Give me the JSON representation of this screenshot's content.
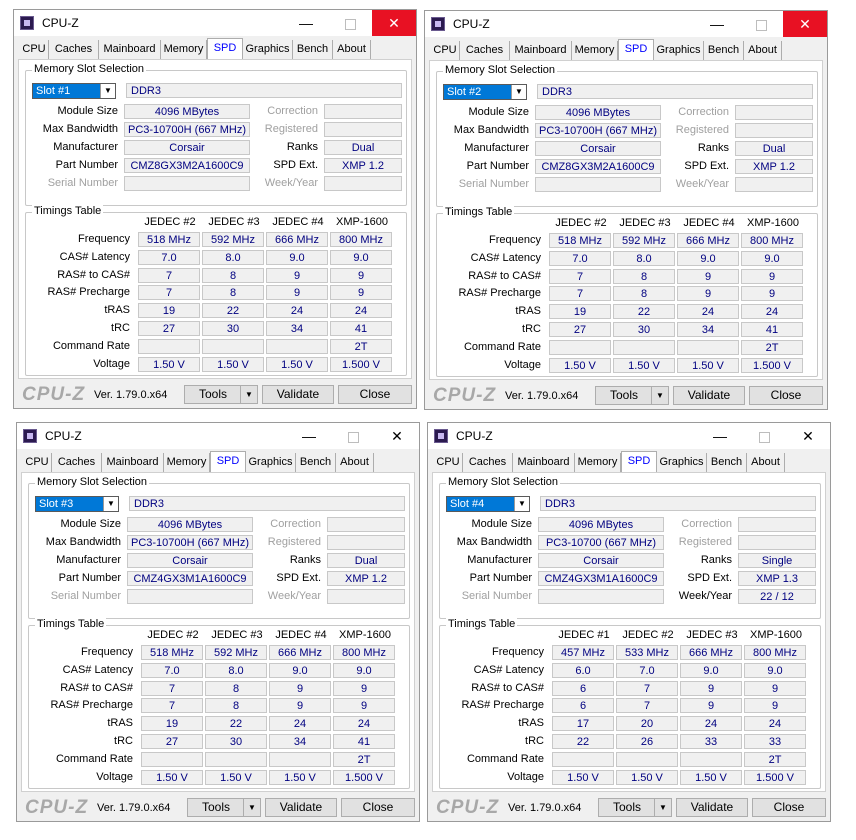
{
  "tabs": [
    "CPU",
    "Caches",
    "Mainboard",
    "Memory",
    "SPD",
    "Graphics",
    "Bench",
    "About"
  ],
  "labels": {
    "slot_group": "Memory Slot Selection",
    "timings_group": "Timings Table",
    "module_size": "Module Size",
    "max_bandwidth": "Max Bandwidth",
    "manufacturer": "Manufacturer",
    "part_number": "Part Number",
    "serial_number": "Serial Number",
    "correction": "Correction",
    "registered": "Registered",
    "ranks": "Ranks",
    "spd_ext": "SPD Ext.",
    "week_year": "Week/Year",
    "row_labels": [
      "Frequency",
      "CAS# Latency",
      "RAS# to CAS#",
      "RAS# Precharge",
      "tRAS",
      "tRC",
      "Command Rate",
      "Voltage"
    ]
  },
  "footer": {
    "brand": "CPU-Z",
    "version": "Ver. 1.79.0.x64",
    "tools": "Tools",
    "validate": "Validate",
    "close": "Close"
  },
  "windows": [
    {
      "title": "CPU-Z",
      "active_tab": "SPD",
      "slot": "Slot #1",
      "mem_type": "DDR3",
      "module_size": "4096 MBytes",
      "max_bandwidth": "PC3-10700H (667 MHz)",
      "manufacturer": "Corsair",
      "part_number": "CMZ8GX3M2A1600C9",
      "serial_number": "",
      "ranks": "Dual",
      "spd_ext": "XMP 1.2",
      "week_year": "",
      "columns": [
        "JEDEC #2",
        "JEDEC #3",
        "JEDEC #4",
        "XMP-1600"
      ],
      "rows": [
        [
          "518 MHz",
          "592 MHz",
          "666 MHz",
          "800 MHz"
        ],
        [
          "7.0",
          "8.0",
          "9.0",
          "9.0"
        ],
        [
          "7",
          "8",
          "9",
          "9"
        ],
        [
          "7",
          "8",
          "9",
          "9"
        ],
        [
          "19",
          "22",
          "24",
          "24"
        ],
        [
          "27",
          "30",
          "34",
          "41"
        ],
        [
          "",
          "",
          "",
          "2T"
        ],
        [
          "1.50 V",
          "1.50 V",
          "1.50 V",
          "1.500 V"
        ]
      ]
    },
    {
      "title": "CPU-Z",
      "active_tab": "SPD",
      "slot": "Slot #2",
      "mem_type": "DDR3",
      "module_size": "4096 MBytes",
      "max_bandwidth": "PC3-10700H (667 MHz)",
      "manufacturer": "Corsair",
      "part_number": "CMZ8GX3M2A1600C9",
      "serial_number": "",
      "ranks": "Dual",
      "spd_ext": "XMP 1.2",
      "week_year": "",
      "columns": [
        "JEDEC #2",
        "JEDEC #3",
        "JEDEC #4",
        "XMP-1600"
      ],
      "rows": [
        [
          "518 MHz",
          "592 MHz",
          "666 MHz",
          "800 MHz"
        ],
        [
          "7.0",
          "8.0",
          "9.0",
          "9.0"
        ],
        [
          "7",
          "8",
          "9",
          "9"
        ],
        [
          "7",
          "8",
          "9",
          "9"
        ],
        [
          "19",
          "22",
          "24",
          "24"
        ],
        [
          "27",
          "30",
          "34",
          "41"
        ],
        [
          "",
          "",
          "",
          "2T"
        ],
        [
          "1.50 V",
          "1.50 V",
          "1.50 V",
          "1.500 V"
        ]
      ]
    },
    {
      "title": "CPU-Z",
      "active_tab": "SPD",
      "slot": "Slot #3",
      "mem_type": "DDR3",
      "module_size": "4096 MBytes",
      "max_bandwidth": "PC3-10700H (667 MHz)",
      "manufacturer": "Corsair",
      "part_number": "CMZ4GX3M1A1600C9",
      "serial_number": "",
      "ranks": "Dual",
      "spd_ext": "XMP 1.2",
      "week_year": "",
      "columns": [
        "JEDEC #2",
        "JEDEC #3",
        "JEDEC #4",
        "XMP-1600"
      ],
      "rows": [
        [
          "518 MHz",
          "592 MHz",
          "666 MHz",
          "800 MHz"
        ],
        [
          "7.0",
          "8.0",
          "9.0",
          "9.0"
        ],
        [
          "7",
          "8",
          "9",
          "9"
        ],
        [
          "7",
          "8",
          "9",
          "9"
        ],
        [
          "19",
          "22",
          "24",
          "24"
        ],
        [
          "27",
          "30",
          "34",
          "41"
        ],
        [
          "",
          "",
          "",
          "2T"
        ],
        [
          "1.50 V",
          "1.50 V",
          "1.50 V",
          "1.500 V"
        ]
      ]
    },
    {
      "title": "CPU-Z",
      "active_tab": "SPD",
      "slot": "Slot #4",
      "mem_type": "DDR3",
      "module_size": "4096 MBytes",
      "max_bandwidth": "PC3-10700 (667 MHz)",
      "manufacturer": "Corsair",
      "part_number": "CMZ4GX3M1A1600C9",
      "serial_number": "",
      "ranks": "Single",
      "spd_ext": "XMP 1.3",
      "week_year": "22 / 12",
      "columns": [
        "JEDEC #1",
        "JEDEC #2",
        "JEDEC #3",
        "XMP-1600"
      ],
      "rows": [
        [
          "457 MHz",
          "533 MHz",
          "666 MHz",
          "800 MHz"
        ],
        [
          "6.0",
          "7.0",
          "9.0",
          "9.0"
        ],
        [
          "6",
          "7",
          "9",
          "9"
        ],
        [
          "6",
          "7",
          "9",
          "9"
        ],
        [
          "17",
          "20",
          "24",
          "24"
        ],
        [
          "22",
          "26",
          "33",
          "33"
        ],
        [
          "",
          "",
          "",
          "2T"
        ],
        [
          "1.50 V",
          "1.50 V",
          "1.50 V",
          "1.500 V"
        ]
      ]
    }
  ]
}
